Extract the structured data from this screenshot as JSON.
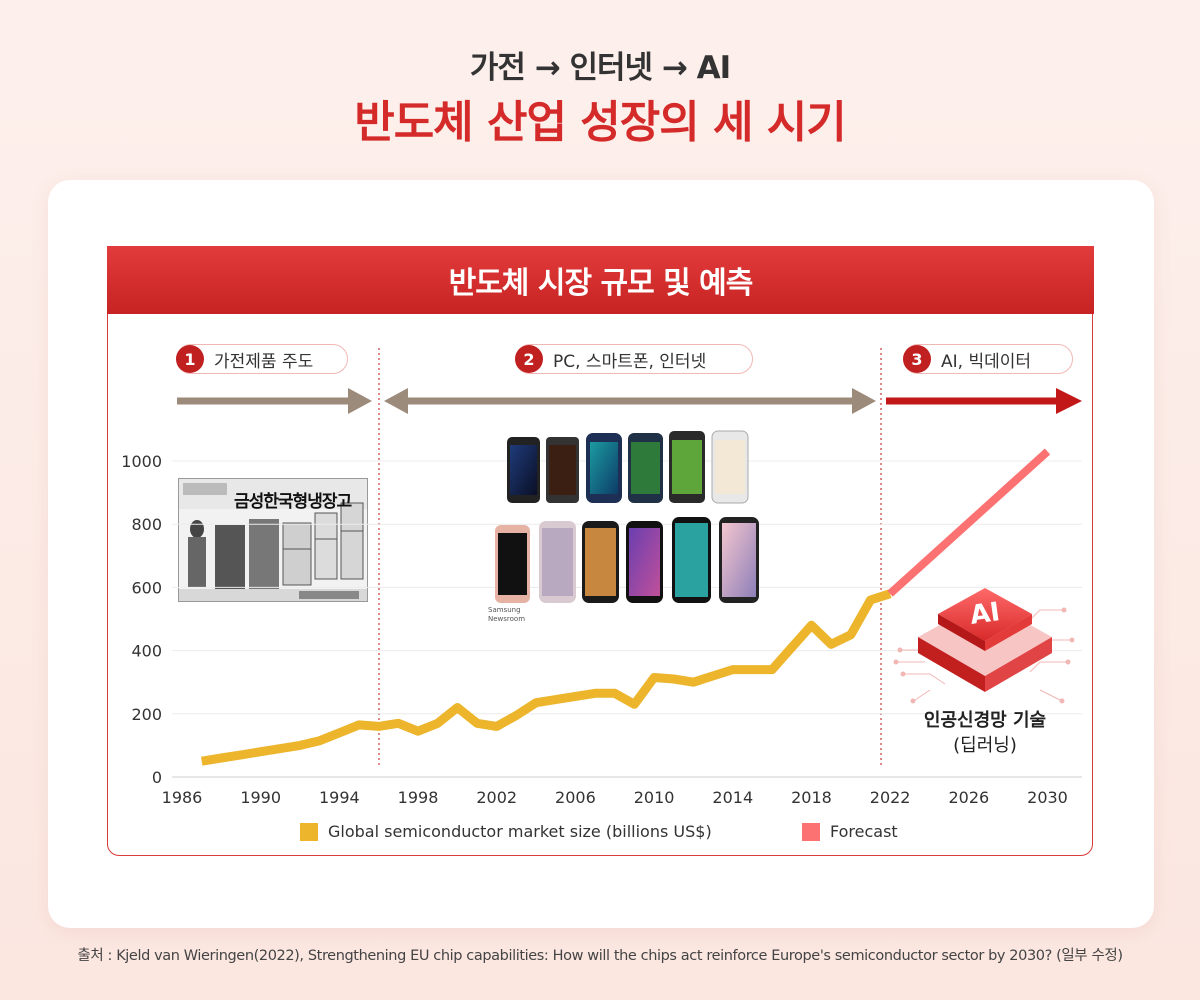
{
  "header": {
    "eyebrow": "가전 → 인터넷 → AI",
    "title": "반도체 산업 성장의 세 시기"
  },
  "panel": {
    "title": "반도체 시장 규모 및 예측"
  },
  "phases": [
    {
      "num": "1",
      "label": "가전제품 주도",
      "color": "#9c8a7a"
    },
    {
      "num": "2",
      "label": "PC, 스마트폰, 인터넷",
      "color": "#9c8a7a"
    },
    {
      "num": "3",
      "label": "AI, 빅데이터",
      "color": "#c21818"
    }
  ],
  "illustrations": {
    "fridge_ad_text": "금성한국형냉장고",
    "phone_credit": [
      "Samsung",
      "Newsroom"
    ],
    "ai_chip_label": "AI",
    "ai_caption_bold": "인공신경망 기술",
    "ai_caption_sub": "(딥러닝)"
  },
  "chart_data": {
    "type": "line",
    "x_ticks": [
      1986,
      1990,
      1994,
      1998,
      2002,
      2006,
      2010,
      2014,
      2018,
      2022,
      2026,
      2030
    ],
    "y_ticks": [
      0,
      200,
      400,
      600,
      800,
      1000
    ],
    "xlim": [
      1986,
      2031
    ],
    "ylim": [
      0,
      1000
    ],
    "grid": true,
    "legend_position": "bottom",
    "series": [
      {
        "name": "Global semiconductor market size (billions US$)",
        "color": "#ecb52b",
        "x": [
          1987,
          1988,
          1989,
          1990,
          1991,
          1992,
          1993,
          1994,
          1995,
          1996,
          1997,
          1998,
          1999,
          2000,
          2001,
          2002,
          2003,
          2004,
          2005,
          2006,
          2007,
          2008,
          2009,
          2010,
          2011,
          2012,
          2013,
          2014,
          2015,
          2016,
          2017,
          2018,
          2019,
          2020,
          2021,
          2022
        ],
        "y": [
          50,
          60,
          70,
          80,
          90,
          100,
          115,
          140,
          165,
          160,
          170,
          145,
          170,
          220,
          170,
          160,
          195,
          235,
          245,
          255,
          265,
          265,
          230,
          315,
          310,
          300,
          320,
          340,
          340,
          340,
          410,
          480,
          420,
          450,
          560,
          580
        ]
      },
      {
        "name": "Forecast",
        "color": "#fc7171",
        "x": [
          2022,
          2030
        ],
        "y": [
          580,
          1030
        ]
      }
    ]
  }
}
